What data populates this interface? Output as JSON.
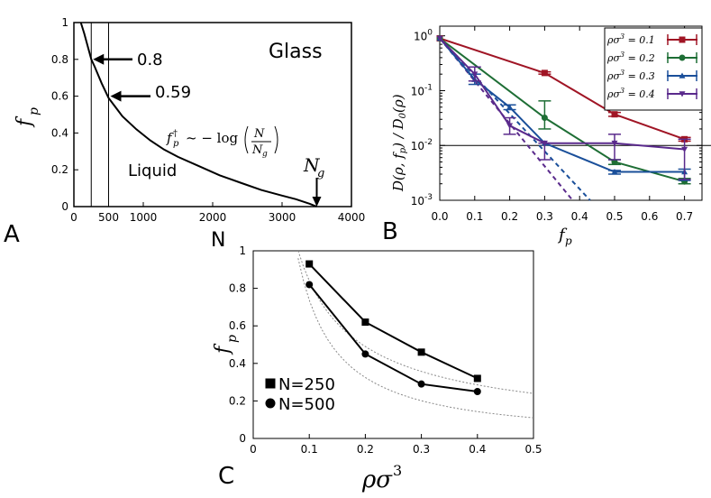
{
  "panels": {
    "A": {
      "label": "A"
    },
    "B": {
      "label": "B"
    },
    "C": {
      "label": "C"
    }
  },
  "chart_data": [
    {
      "id": "A",
      "type": "line",
      "xlabel": "N",
      "ylabel": "f_p",
      "xlim": [
        0,
        4000
      ],
      "ylim": [
        0,
        1
      ],
      "xticks": [
        0,
        500,
        1000,
        2000,
        3000,
        4000
      ],
      "xtick_labels": [
        "0",
        "500",
        "1000",
        "2000",
        "3000",
        "4000"
      ],
      "yticks": [
        0,
        0.2,
        0.4,
        0.6,
        0.8,
        1
      ],
      "ytick_labels": [
        "0",
        "0.2",
        "0.4",
        "0.6",
        "0.8",
        "1"
      ],
      "grid": false,
      "Ng": 3500,
      "vlines": [
        250,
        500
      ],
      "annotations": {
        "glass": "Glass",
        "liquid": "Liquid",
        "arrow1": "0.8",
        "arrow2": "0.59",
        "formula_lhs": "f",
        "formula_rel": "~ − log",
        "formula_num": "N",
        "formula_den": "N",
        "Ng_label": "N"
      },
      "series": [
        {
          "x": [
            100,
            150,
            200,
            250,
            300,
            400,
            500,
            700,
            900,
            1100,
            1300,
            1500,
            1800,
            2100,
            2400,
            2700,
            3000,
            3200,
            3400,
            3500
          ],
          "values": [
            1.0,
            0.94,
            0.87,
            0.8,
            0.76,
            0.67,
            0.59,
            0.49,
            0.42,
            0.36,
            0.31,
            0.27,
            0.22,
            0.17,
            0.13,
            0.09,
            0.06,
            0.04,
            0.015,
            0.0
          ]
        }
      ]
    },
    {
      "id": "B",
      "type": "line",
      "xlabel": "f_p",
      "ylabel": "D(ρ, f_p) / D_0(ρ)",
      "xlim": [
        0,
        0.75
      ],
      "ylim": [
        0.001,
        1.5
      ],
      "log_y": true,
      "xticks": [
        0,
        0.1,
        0.2,
        0.3,
        0.4,
        0.5,
        0.6,
        0.7
      ],
      "xtick_labels": [
        "0.0",
        "0.1",
        "0.2",
        "0.3",
        "0.4",
        "0.5",
        "0.6",
        "0.7"
      ],
      "yticks": [
        1,
        0.1,
        0.01,
        0.001
      ],
      "ytick_labels": [
        [
          "10",
          "0"
        ],
        [
          "10",
          "-1"
        ],
        [
          "10",
          "-2"
        ],
        [
          "10",
          "-3"
        ]
      ],
      "hline": 0.01,
      "legend_position": "top-right",
      "series": [
        {
          "name": "ρσ³ = 0.1",
          "color": "#a01525",
          "marker": "square",
          "x": [
            0,
            0.3,
            0.5,
            0.7
          ],
          "values": [
            0.9,
            0.21,
            0.037,
            0.013
          ],
          "err": [
            0.0,
            0.01,
            0.003,
            0.001
          ]
        },
        {
          "name": "ρσ³ = 0.2",
          "color": "#1e6e35",
          "marker": "circle",
          "x": [
            0,
            0.3,
            0.5,
            0.7
          ],
          "values": [
            0.9,
            0.032,
            0.005,
            0.0022
          ],
          "err_hi": [
            0,
            0.065,
            0.0055,
            0.0025
          ],
          "err_lo": [
            0,
            0.02,
            0.0045,
            0.002
          ]
        },
        {
          "name": "ρσ³ = 0.3",
          "color": "#1a4f9a",
          "marker": "triangle",
          "x": [
            0,
            0.1,
            0.2,
            0.3,
            0.5,
            0.7
          ],
          "values": [
            0.9,
            0.16,
            0.05,
            0.011,
            0.0033,
            0.0033
          ],
          "err_hi": [
            0,
            0.2,
            0.055,
            0.011,
            0.0035,
            0.0037
          ],
          "err_lo": [
            0,
            0.13,
            0.045,
            0.011,
            0.003,
            0.0023
          ]
        },
        {
          "name": "ρσ³ = 0.4",
          "color": "#5a2a8c",
          "marker": "triangle-down",
          "x": [
            0,
            0.1,
            0.2,
            0.3,
            0.5,
            0.7
          ],
          "values": [
            0.9,
            0.2,
            0.023,
            0.011,
            0.011,
            0.0085
          ],
          "err_hi": [
            0,
            0.27,
            0.032,
            0.011,
            0.016,
            0.013
          ],
          "err_lo": [
            0,
            0.15,
            0.016,
            0.0055,
            0.0055,
            0.0024
          ]
        }
      ],
      "fits": [
        {
          "color": "#1a4f9a",
          "x": [
            0,
            0.43
          ],
          "values": [
            0.9,
            0.001
          ]
        },
        {
          "color": "#5a2a8c",
          "x": [
            0,
            0.38
          ],
          "values": [
            0.9,
            0.001
          ]
        }
      ]
    },
    {
      "id": "C",
      "type": "line",
      "xlabel": "ρσ³",
      "ylabel": "f_p",
      "xlim": [
        0,
        0.5
      ],
      "ylim": [
        0,
        1
      ],
      "xticks": [
        0,
        0.1,
        0.2,
        0.3,
        0.4,
        0.5
      ],
      "xtick_labels": [
        "0",
        "0.1",
        "0.2",
        "0.3",
        "0.4",
        "0.5"
      ],
      "yticks": [
        0,
        0.2,
        0.4,
        0.6,
        0.8,
        1
      ],
      "ytick_labels": [
        "0",
        "0.2",
        "0.4",
        "0.6",
        "0.8",
        "1"
      ],
      "legend_position": "bottom-left",
      "series": [
        {
          "name": "N=250",
          "marker": "square",
          "x": [
            0.1,
            0.2,
            0.3,
            0.4
          ],
          "values": [
            0.93,
            0.62,
            0.46,
            0.32
          ]
        },
        {
          "name": "N=500",
          "marker": "circle",
          "x": [
            0.1,
            0.2,
            0.3,
            0.4
          ],
          "values": [
            0.82,
            0.45,
            0.29,
            0.25
          ]
        }
      ],
      "fits": [
        {
          "x": [
            0.08,
            0.5
          ],
          "values": [
            1.0,
            0.24
          ]
        },
        {
          "x": [
            0.08,
            0.5
          ],
          "values": [
            0.96,
            0.11
          ]
        }
      ]
    }
  ]
}
